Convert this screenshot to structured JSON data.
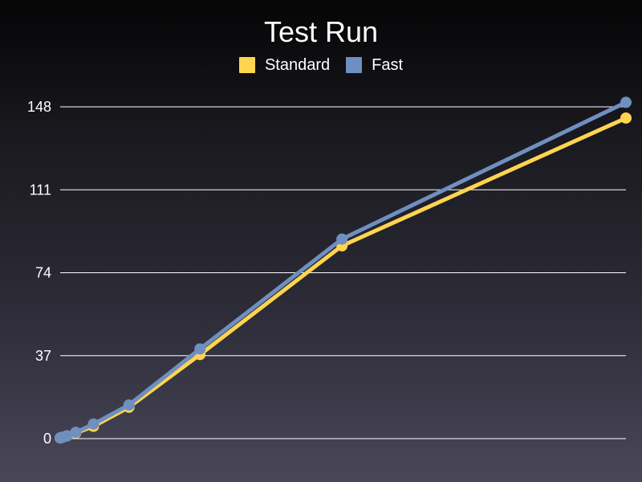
{
  "chart_data": {
    "type": "line",
    "title": "Test Run",
    "xlabel": "",
    "ylabel": "",
    "ylim": [
      0,
      148
    ],
    "yticks": [
      "0",
      "37",
      "74",
      "111",
      "148"
    ],
    "grid": true,
    "legend_position": "top-center",
    "series": [
      {
        "name": "Standard",
        "color": "#FFD54F",
        "x": [
          1,
          2,
          4,
          8,
          16,
          32,
          64,
          128,
          256
        ],
        "values": [
          0.3,
          0.6,
          1.2,
          2.5,
          5.5,
          14,
          37.5,
          86,
          143
        ]
      },
      {
        "name": "Fast",
        "color": "#6F8FC0",
        "x": [
          1,
          2,
          4,
          8,
          16,
          32,
          64,
          128,
          256
        ],
        "values": [
          0.3,
          0.6,
          1.2,
          2.8,
          6.5,
          15,
          40,
          89,
          150
        ]
      }
    ]
  }
}
